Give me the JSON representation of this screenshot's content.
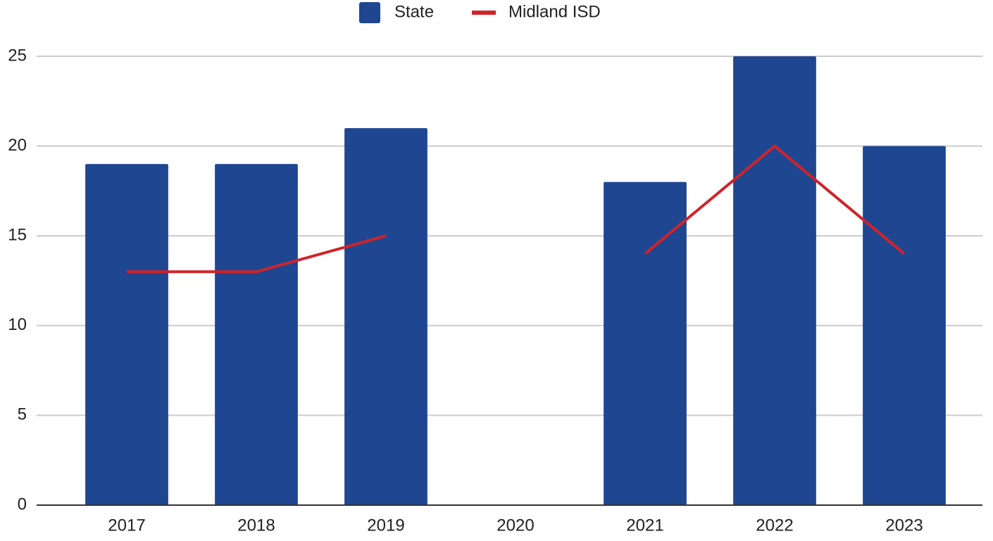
{
  "chart_data": {
    "type": "bar",
    "categories": [
      "2017",
      "2018",
      "2019",
      "2020",
      "2021",
      "2022",
      "2023"
    ],
    "series": [
      {
        "name": "State",
        "type": "bar",
        "color": "#1f4690",
        "values": [
          19,
          19,
          21,
          null,
          18,
          25,
          20
        ]
      },
      {
        "name": "Midland ISD",
        "type": "line",
        "color": "#d0232a",
        "values": [
          13,
          13,
          15,
          null,
          14,
          20,
          14
        ]
      }
    ],
    "ylim": [
      0,
      25
    ],
    "yticks": [
      0,
      5,
      10,
      15,
      20,
      25
    ],
    "grid": true,
    "legend": "top"
  }
}
